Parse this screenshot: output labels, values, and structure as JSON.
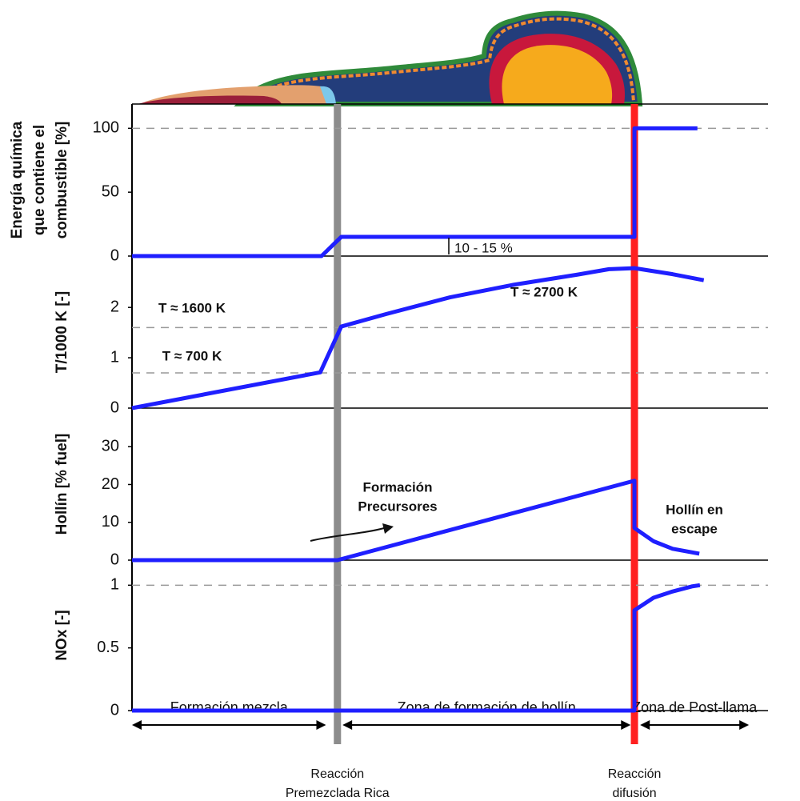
{
  "chart_data": [
    {
      "type": "line",
      "ylabel": [
        "Energía química",
        "que contiene el",
        "combustible [%]"
      ],
      "xlim": [
        0,
        100
      ],
      "ylim": [
        0,
        119
      ],
      "yticks": [
        0,
        50,
        100
      ],
      "reference_lines": [
        100
      ],
      "color": "#1f1fff",
      "x": [
        0,
        29.8,
        32.9,
        79.0,
        79.0,
        88.9
      ],
      "values": [
        0,
        0,
        15,
        15,
        100,
        100
      ],
      "annotations": [
        [
          "10 - 15 %"
        ]
      ]
    },
    {
      "type": "line",
      "ylabel": [
        "T/1000 K [-]"
      ],
      "xlim": [
        0,
        100
      ],
      "ylim": [
        0,
        3.02
      ],
      "yticks": [
        0,
        1,
        2
      ],
      "reference_lines": [
        1.6,
        0.7
      ],
      "color": "#1f1fff",
      "x": [
        0,
        29.6,
        32.9,
        40,
        50,
        60,
        70,
        75,
        79,
        85,
        89.9
      ],
      "values": [
        0,
        0.71,
        1.62,
        1.87,
        2.2,
        2.45,
        2.65,
        2.76,
        2.78,
        2.66,
        2.54
      ],
      "annotations": [
        [
          "T ≈ 1600 K"
        ],
        [
          "T ≈ 700 K"
        ],
        [
          "T ≈ 2700 K"
        ]
      ]
    },
    {
      "type": "line",
      "ylabel": [
        "Hollín  [% fuel]"
      ],
      "xlim": [
        0,
        100
      ],
      "ylim": [
        0,
        40.2
      ],
      "yticks": [
        0,
        10,
        20,
        30
      ],
      "reference_lines": [],
      "color": "#1f1fff",
      "x": [
        0,
        32.3,
        79,
        79,
        82,
        85,
        89.2
      ],
      "values": [
        0,
        0,
        21,
        8.5,
        5,
        3,
        1.7
      ],
      "annotations": [
        [
          "Formación",
          "Precursores"
        ],
        [
          "Hollín en",
          "escape"
        ]
      ]
    },
    {
      "type": "line",
      "ylabel": [
        "NOx [-]"
      ],
      "xlim": [
        0,
        100
      ],
      "ylim": [
        0,
        1.2
      ],
      "yticks": [
        0,
        0.5,
        1
      ],
      "reference_lines": [
        1
      ],
      "color": "#1f1fff",
      "x": [
        0,
        79,
        79,
        82,
        85,
        88,
        89.3
      ],
      "values": [
        0,
        0,
        0.8,
        0.9,
        0.95,
        0.99,
        1.0
      ],
      "annotations": []
    }
  ],
  "phases": {
    "xlim": [
      0,
      100
    ],
    "events": [
      {
        "label": [
          "Reacción",
          "Premezclada Rica"
        ],
        "x": 32.3,
        "color": "#8c8c8c"
      },
      {
        "label": [
          "Reacción",
          "difusión"
        ],
        "x": 79,
        "color": "#ff2020"
      }
    ],
    "zones": [
      {
        "label": "Formación mezcla",
        "x": [
          0,
          30.5
        ]
      },
      {
        "label": "Zona de formación de hollín",
        "x": [
          33.1,
          78.4
        ]
      },
      {
        "label": "Zona de Post-llama",
        "x": [
          79.9,
          97
        ]
      }
    ]
  }
}
